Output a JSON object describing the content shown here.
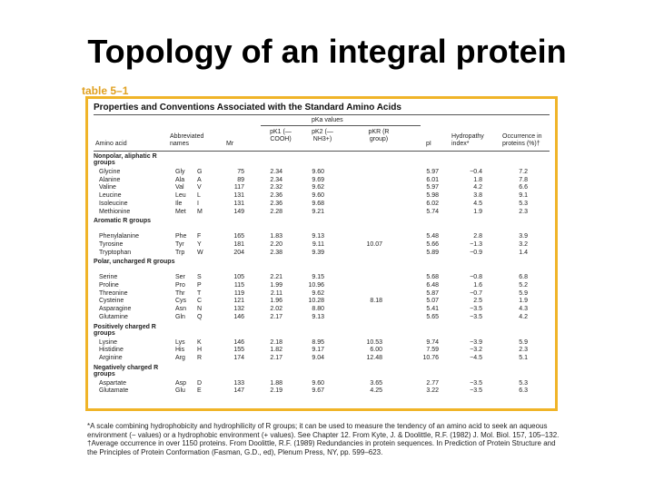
{
  "slide": {
    "title": "Topology of an integral protein",
    "table_label": "table 5–1"
  },
  "table": {
    "caption": "Properties and Conventions Associated with the Standard Amino Acids",
    "headers": {
      "pka_group": "pKa values",
      "amino_acid": "Amino acid",
      "abbrev": "Abbreviated names",
      "mr": "Mr",
      "pk1": "pK1 (—COOH)",
      "pk2": "pK2 (—NH3+)",
      "pkr": "pKR (R group)",
      "pi": "pI",
      "hydropathy": "Hydropathy index*",
      "occurrence": "Occurrence in proteins (%)†"
    },
    "groups": [
      {
        "label": "Nonpolar, aliphatic R groups",
        "rows": [
          {
            "name": "Glycine",
            "ab3": "Gly",
            "ab1": "G",
            "mr": "75",
            "pk1": "2.34",
            "pk2": "9.60",
            "pkr": "",
            "pi": "5.97",
            "hyd": "−0.4",
            "occ": "7.2"
          },
          {
            "name": "Alanine",
            "ab3": "Ala",
            "ab1": "A",
            "mr": "89",
            "pk1": "2.34",
            "pk2": "9.69",
            "pkr": "",
            "pi": "6.01",
            "hyd": "1.8",
            "occ": "7.8"
          },
          {
            "name": "Valine",
            "ab3": "Val",
            "ab1": "V",
            "mr": "117",
            "pk1": "2.32",
            "pk2": "9.62",
            "pkr": "",
            "pi": "5.97",
            "hyd": "4.2",
            "occ": "6.6"
          },
          {
            "name": "Leucine",
            "ab3": "Leu",
            "ab1": "L",
            "mr": "131",
            "pk1": "2.36",
            "pk2": "9.60",
            "pkr": "",
            "pi": "5.98",
            "hyd": "3.8",
            "occ": "9.1"
          },
          {
            "name": "Isoleucine",
            "ab3": "Ile",
            "ab1": "I",
            "mr": "131",
            "pk1": "2.36",
            "pk2": "9.68",
            "pkr": "",
            "pi": "6.02",
            "hyd": "4.5",
            "occ": "5.3"
          },
          {
            "name": "Methionine",
            "ab3": "Met",
            "ab1": "M",
            "mr": "149",
            "pk1": "2.28",
            "pk2": "9.21",
            "pkr": "",
            "pi": "5.74",
            "hyd": "1.9",
            "occ": "2.3"
          }
        ]
      },
      {
        "label": "Aromatic R groups",
        "rows": [
          {
            "name": "Phenylalanine",
            "ab3": "Phe",
            "ab1": "F",
            "mr": "165",
            "pk1": "1.83",
            "pk2": "9.13",
            "pkr": "",
            "pi": "5.48",
            "hyd": "2.8",
            "occ": "3.9"
          },
          {
            "name": "Tyrosine",
            "ab3": "Tyr",
            "ab1": "Y",
            "mr": "181",
            "pk1": "2.20",
            "pk2": "9.11",
            "pkr": "10.07",
            "pi": "5.66",
            "hyd": "−1.3",
            "occ": "3.2"
          },
          {
            "name": "Tryptophan",
            "ab3": "Trp",
            "ab1": "W",
            "mr": "204",
            "pk1": "2.38",
            "pk2": "9.39",
            "pkr": "",
            "pi": "5.89",
            "hyd": "−0.9",
            "occ": "1.4"
          }
        ]
      },
      {
        "label": "Polar, uncharged R groups",
        "rows": [
          {
            "name": "Serine",
            "ab3": "Ser",
            "ab1": "S",
            "mr": "105",
            "pk1": "2.21",
            "pk2": "9.15",
            "pkr": "",
            "pi": "5.68",
            "hyd": "−0.8",
            "occ": "6.8"
          },
          {
            "name": "Proline",
            "ab3": "Pro",
            "ab1": "P",
            "mr": "115",
            "pk1": "1.99",
            "pk2": "10.96",
            "pkr": "",
            "pi": "6.48",
            "hyd": "1.6",
            "occ": "5.2"
          },
          {
            "name": "Threonine",
            "ab3": "Thr",
            "ab1": "T",
            "mr": "119",
            "pk1": "2.11",
            "pk2": "9.62",
            "pkr": "",
            "pi": "5.87",
            "hyd": "−0.7",
            "occ": "5.9"
          },
          {
            "name": "Cysteine",
            "ab3": "Cys",
            "ab1": "C",
            "mr": "121",
            "pk1": "1.96",
            "pk2": "10.28",
            "pkr": "8.18",
            "pi": "5.07",
            "hyd": "2.5",
            "occ": "1.9"
          },
          {
            "name": "Asparagine",
            "ab3": "Asn",
            "ab1": "N",
            "mr": "132",
            "pk1": "2.02",
            "pk2": "8.80",
            "pkr": "",
            "pi": "5.41",
            "hyd": "−3.5",
            "occ": "4.3"
          },
          {
            "name": "Glutamine",
            "ab3": "Gln",
            "ab1": "Q",
            "mr": "146",
            "pk1": "2.17",
            "pk2": "9.13",
            "pkr": "",
            "pi": "5.65",
            "hyd": "−3.5",
            "occ": "4.2"
          }
        ]
      },
      {
        "label": "Positively charged R groups",
        "rows": [
          {
            "name": "Lysine",
            "ab3": "Lys",
            "ab1": "K",
            "mr": "146",
            "pk1": "2.18",
            "pk2": "8.95",
            "pkr": "10.53",
            "pi": "9.74",
            "hyd": "−3.9",
            "occ": "5.9"
          },
          {
            "name": "Histidine",
            "ab3": "His",
            "ab1": "H",
            "mr": "155",
            "pk1": "1.82",
            "pk2": "9.17",
            "pkr": "6.00",
            "pi": "7.59",
            "hyd": "−3.2",
            "occ": "2.3"
          },
          {
            "name": "Arginine",
            "ab3": "Arg",
            "ab1": "R",
            "mr": "174",
            "pk1": "2.17",
            "pk2": "9.04",
            "pkr": "12.48",
            "pi": "10.76",
            "hyd": "−4.5",
            "occ": "5.1"
          }
        ]
      },
      {
        "label": "Negatively charged R groups",
        "rows": [
          {
            "name": "Aspartate",
            "ab3": "Asp",
            "ab1": "D",
            "mr": "133",
            "pk1": "1.88",
            "pk2": "9.60",
            "pkr": "3.65",
            "pi": "2.77",
            "hyd": "−3.5",
            "occ": "5.3"
          },
          {
            "name": "Glutamate",
            "ab3": "Glu",
            "ab1": "E",
            "mr": "147",
            "pk1": "2.19",
            "pk2": "9.67",
            "pkr": "4.25",
            "pi": "3.22",
            "hyd": "−3.5",
            "occ": "6.3"
          }
        ]
      }
    ],
    "footnotes": [
      "*A scale combining hydrophobicity and hydrophilicity of R groups; it can be used to measure the tendency of an amino acid to seek an aqueous environment (− values) or a hydrophobic environment (+ values). See Chapter 12. From Kyte, J. & Doolittle, R.F. (1982) J. Mol. Biol. 157, 105–132.",
      "†Average occurrence in over 1150 proteins. From Doolittle, R.F. (1989) Redundancies in protein sequences. In Prediction of Protein Structure and the Principles of Protein Conformation (Fasman, G.D., ed), Plenum Press, NY, pp. 599–623."
    ]
  }
}
